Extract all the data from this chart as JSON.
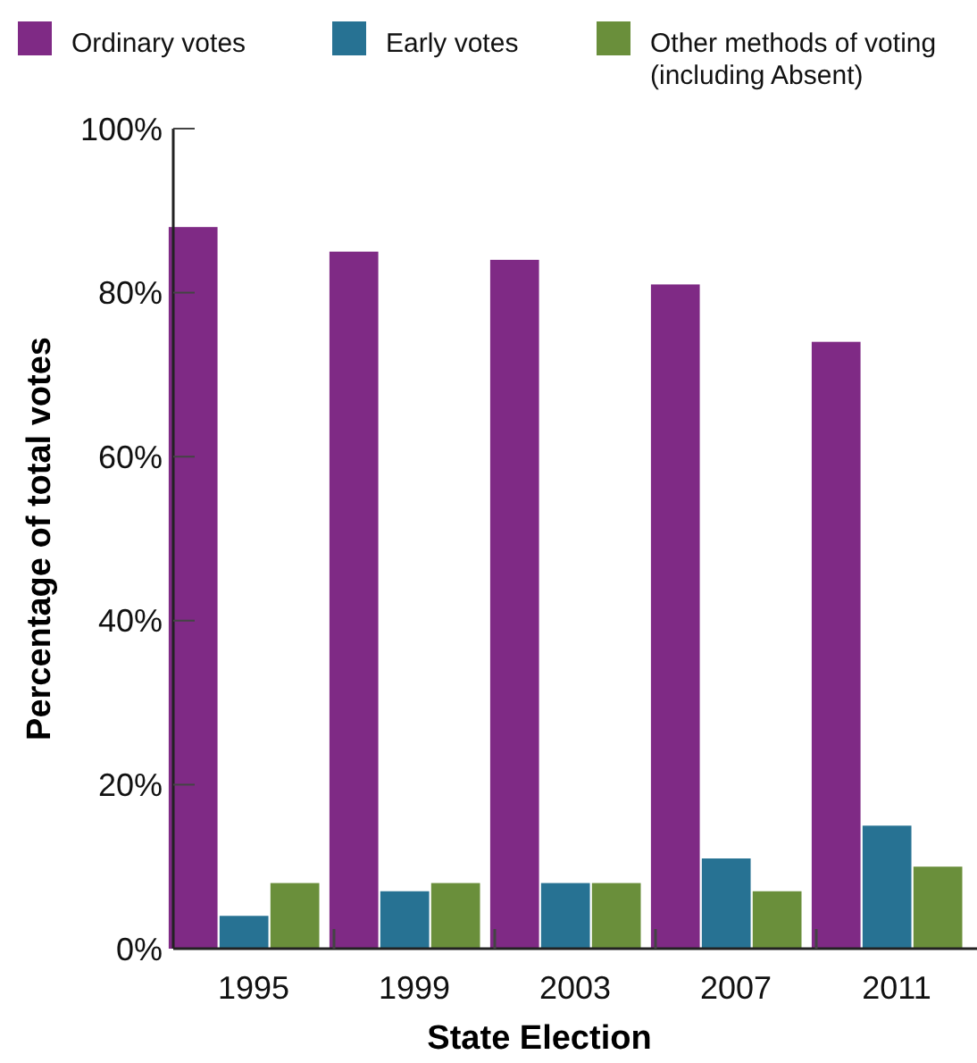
{
  "chart_data": {
    "type": "bar",
    "categories": [
      "1995",
      "1999",
      "2003",
      "2007",
      "2011"
    ],
    "series": [
      {
        "name": "Ordinary votes",
        "color": "#7f2a85",
        "values": [
          88,
          85,
          84,
          81,
          74
        ]
      },
      {
        "name": "Early votes",
        "color": "#277293",
        "values": [
          4,
          7,
          8,
          11,
          15
        ]
      },
      {
        "name": "Other methods of voting (including Absent)",
        "color": "#6a8f3b",
        "values": [
          8,
          8,
          8,
          7,
          10
        ]
      }
    ],
    "xlabel": "State Election",
    "ylabel": "Percentage of total votes",
    "ylim": [
      0,
      100
    ],
    "yticks": [
      {
        "value": 0,
        "label": "0%"
      },
      {
        "value": 20,
        "label": "20%"
      },
      {
        "value": 40,
        "label": "40%"
      },
      {
        "value": 60,
        "label": "60%"
      },
      {
        "value": 80,
        "label": "80%"
      },
      {
        "value": 100,
        "label": "100%"
      }
    ],
    "grid": false,
    "legend": "top"
  }
}
